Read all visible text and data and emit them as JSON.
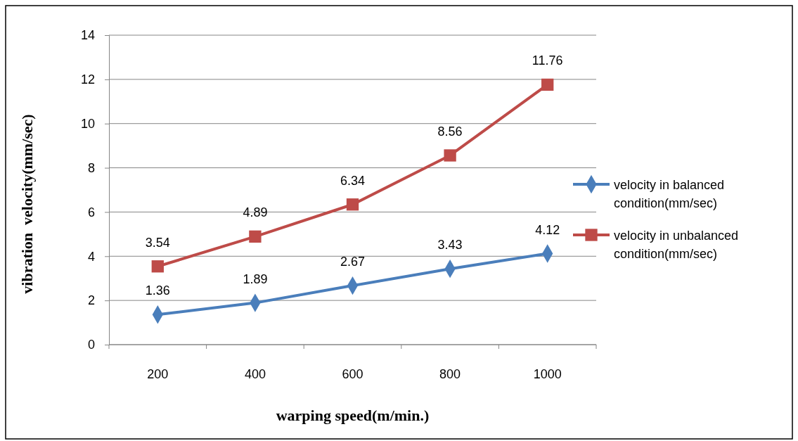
{
  "chart_data": {
    "type": "line",
    "xlabel": "warping speed(m/min.)",
    "ylabel": "vibration  velocity(mm/sec)",
    "categories": [
      "200",
      "400",
      "600",
      "800",
      "1000"
    ],
    "series": [
      {
        "name": "velocity in balanced condition(mm/sec)",
        "color": "#4a7ebb",
        "marker": "diamond",
        "values": [
          1.36,
          1.89,
          2.67,
          3.43,
          4.12
        ]
      },
      {
        "name": "velocity in unbalanced condition(mm/sec)",
        "color": "#be4b48",
        "marker": "square",
        "values": [
          3.54,
          4.89,
          6.34,
          8.56,
          11.76
        ]
      }
    ],
    "ylim": [
      0,
      14
    ],
    "yticks": [
      0,
      2,
      4,
      6,
      8,
      10,
      12,
      14
    ],
    "grid": "y",
    "legend": "right",
    "data_labels": true,
    "line_style": "solid"
  }
}
